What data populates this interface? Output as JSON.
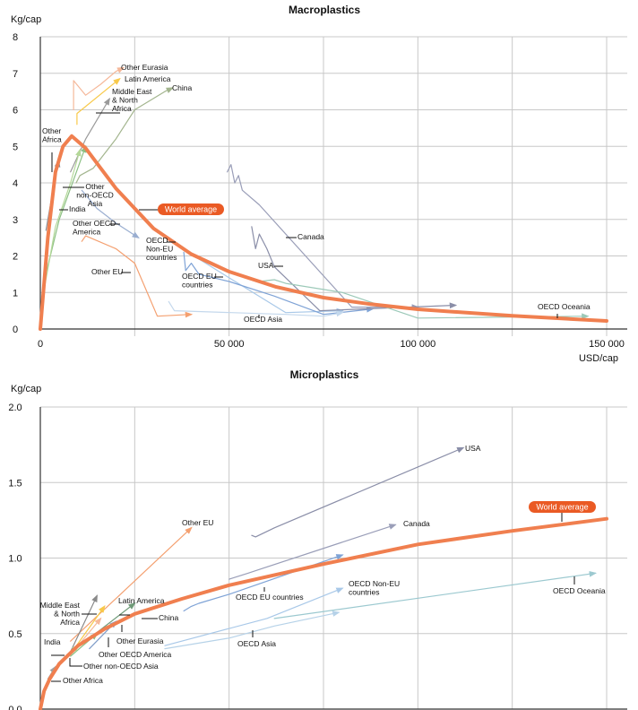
{
  "chart_data": [
    {
      "type": "line",
      "title": "Macroplastics",
      "ylabel": "Kg/cap",
      "xlabel": "USD/cap",
      "xlim": [
        0,
        150000
      ],
      "ylim": [
        0,
        8
      ],
      "x_ticks": [
        "0",
        "50 000",
        "100 000",
        "150 000"
      ],
      "y_ticks": [
        "0",
        "1",
        "2",
        "3",
        "4",
        "5",
        "6",
        "7",
        "8"
      ],
      "grid": true,
      "series": [
        {
          "name": "World average",
          "color": "#f07f4f",
          "points": [
            [
              0,
              0
            ],
            [
              2000,
              2.5
            ],
            [
              4000,
              4.3
            ],
            [
              6000,
              5.0
            ],
            [
              8300,
              5.28
            ],
            [
              12000,
              4.95
            ],
            [
              16000,
              4.4
            ],
            [
              20000,
              3.85
            ],
            [
              25000,
              3.3
            ],
            [
              30000,
              2.75
            ],
            [
              40000,
              2.05
            ],
            [
              50000,
              1.57
            ],
            [
              62500,
              1.15
            ],
            [
              75000,
              0.86
            ],
            [
              87500,
              0.68
            ],
            [
              100000,
              0.54
            ],
            [
              125000,
              0.36
            ],
            [
              150000,
              0.22
            ]
          ]
        },
        {
          "name": "Other Eurasia",
          "color": "#f5b89a",
          "points": [
            [
              8800,
              6.0
            ],
            [
              8800,
              6.8
            ],
            [
              12000,
              6.4
            ],
            [
              16000,
              6.7
            ],
            [
              20000,
              7.05
            ],
            [
              22000,
              7.15
            ]
          ]
        },
        {
          "name": "Latin America",
          "color": "#f8c94a",
          "points": [
            [
              9700,
              5.6
            ],
            [
              9700,
              5.9
            ],
            [
              21000,
              6.85
            ]
          ]
        },
        {
          "name": "Middle East & North Africa",
          "color": "#9a9a9a",
          "points": [
            [
              8000,
              4.3
            ],
            [
              12000,
              5.2
            ],
            [
              18300,
              6.3
            ]
          ]
        },
        {
          "name": "China",
          "color": "#a3b58e",
          "points": [
            [
              9500,
              4.0
            ],
            [
              10500,
              4.2
            ],
            [
              14000,
              4.4
            ],
            [
              20000,
              5.2
            ],
            [
              25000,
              6.0
            ],
            [
              33000,
              6.5
            ],
            [
              35000,
              6.6
            ]
          ]
        },
        {
          "name": "Other non-OECD Asia",
          "color": "#8cc084",
          "points": [
            [
              1700,
              1.6
            ],
            [
              5000,
              3.0
            ],
            [
              12000,
              5.0
            ]
          ]
        },
        {
          "name": "India",
          "color": "#b5d89a",
          "points": [
            [
              1200,
              1.2
            ],
            [
              4000,
              2.8
            ],
            [
              8000,
              4.0
            ],
            [
              10500,
              4.9
            ]
          ]
        },
        {
          "name": "Other Africa",
          "color": "#8a8f9a",
          "points": [
            [
              1500,
              2.7
            ],
            [
              2000,
              3.0
            ],
            [
              4200,
              4.3
            ],
            [
              4900,
              4.6
            ]
          ]
        },
        {
          "name": "Other OECD America",
          "color": "#9aaed0",
          "points": [
            [
              11000,
              3.8
            ],
            [
              15000,
              3.3
            ],
            [
              20000,
              2.9
            ],
            [
              26000,
              2.5
            ]
          ]
        },
        {
          "name": "Other EU",
          "color": "#f4a070",
          "points": [
            [
              11000,
              2.4
            ],
            [
              12000,
              2.55
            ],
            [
              20000,
              2.2
            ],
            [
              25000,
              1.8
            ],
            [
              31000,
              0.35
            ],
            [
              40000,
              0.4
            ]
          ]
        },
        {
          "name": "OECD Non-EU countries",
          "color": "#a8c8e8",
          "points": [
            [
              33000,
              2.55
            ],
            [
              36000,
              2.3
            ],
            [
              50000,
              1.4
            ],
            [
              65000,
              0.45
            ],
            [
              80000,
              0.5
            ]
          ]
        },
        {
          "name": "OECD EU countries",
          "color": "#7fa3d6",
          "points": [
            [
              38000,
              2.1
            ],
            [
              38500,
              1.6
            ],
            [
              40000,
              1.8
            ],
            [
              42000,
              1.5
            ],
            [
              50000,
              1.3
            ],
            [
              62000,
              0.9
            ],
            [
              75000,
              0.4
            ],
            [
              88000,
              0.55
            ]
          ]
        },
        {
          "name": "OECD Asia",
          "color": "#c4d8ec",
          "points": [
            [
              34000,
              0.75
            ],
            [
              35500,
              0.5
            ],
            [
              65000,
              0.4
            ],
            [
              75000,
              0.35
            ],
            [
              80000,
              0.45
            ]
          ]
        },
        {
          "name": "Canada",
          "color": "#9a9eb8",
          "points": [
            [
              49500,
              4.3
            ],
            [
              50500,
              4.5
            ],
            [
              51500,
              4.0
            ],
            [
              52500,
              4.2
            ],
            [
              53500,
              3.8
            ],
            [
              58000,
              3.4
            ],
            [
              82500,
              0.6
            ],
            [
              100000,
              0.6
            ]
          ]
        },
        {
          "name": "USA",
          "color": "#8a8ea8",
          "points": [
            [
              56000,
              2.8
            ],
            [
              57000,
              2.2
            ],
            [
              58000,
              2.6
            ],
            [
              60000,
              2.2
            ],
            [
              62000,
              1.7
            ],
            [
              74000,
              0.5
            ],
            [
              110000,
              0.65
            ]
          ]
        },
        {
          "name": "OECD Oceania",
          "color": "#9cc9b8",
          "points": [
            [
              58000,
              1.3
            ],
            [
              62000,
              1.35
            ],
            [
              65000,
              1.25
            ],
            [
              80000,
              1.0
            ],
            [
              100000,
              0.3
            ],
            [
              145000,
              0.35
            ]
          ]
        }
      ]
    },
    {
      "type": "line",
      "title": "Microplastics",
      "ylabel": "Kg/cap",
      "xlim": [
        0,
        150000
      ],
      "ylim": [
        0,
        2.0
      ],
      "y_ticks": [
        "0.0",
        "0.5",
        "1.0",
        "1.5",
        "2.0"
      ],
      "grid": true,
      "series": [
        {
          "name": "World average",
          "color": "#f07f4f",
          "points": [
            [
              0,
              0
            ],
            [
              1000,
              0.12
            ],
            [
              2500,
              0.2
            ],
            [
              5000,
              0.3
            ],
            [
              10000,
              0.42
            ],
            [
              17000,
              0.53
            ],
            [
              25000,
              0.63
            ],
            [
              37500,
              0.73
            ],
            [
              50000,
              0.82
            ],
            [
              75000,
              0.96
            ],
            [
              100000,
              1.09
            ],
            [
              125000,
              1.18
            ],
            [
              150000,
              1.26
            ]
          ]
        },
        {
          "name": "USA",
          "color": "#8a8ea8",
          "points": [
            [
              56000,
              1.15
            ],
            [
              57000,
              1.14
            ],
            [
              62000,
              1.2
            ],
            [
              112000,
              1.73
            ]
          ]
        },
        {
          "name": "Canada",
          "color": "#9a9eb8",
          "points": [
            [
              50000,
              0.86
            ],
            [
              55000,
              0.9
            ],
            [
              94000,
              1.22
            ]
          ]
        },
        {
          "name": "OECD EU countries",
          "color": "#7fa3d6",
          "points": [
            [
              38000,
              0.65
            ],
            [
              40000,
              0.68
            ],
            [
              42000,
              0.7
            ],
            [
              50000,
              0.76
            ],
            [
              80000,
              1.02
            ]
          ]
        },
        {
          "name": "OECD Non-EU countries",
          "color": "#a8c8e8",
          "points": [
            [
              33000,
              0.42
            ],
            [
              60000,
              0.6
            ],
            [
              80000,
              0.8
            ]
          ]
        },
        {
          "name": "OECD Asia",
          "color": "#b6d2e8",
          "points": [
            [
              33000,
              0.4
            ],
            [
              50000,
              0.47
            ],
            [
              62000,
              0.55
            ],
            [
              79000,
              0.64
            ]
          ]
        },
        {
          "name": "OECD Oceania",
          "color": "#9cc9d0",
          "points": [
            [
              62000,
              0.6
            ],
            [
              147000,
              0.9
            ]
          ]
        },
        {
          "name": "Other EU",
          "color": "#f4a070",
          "points": [
            [
              8000,
              0.45
            ],
            [
              40000,
              1.2
            ]
          ]
        },
        {
          "name": "Middle East & North Africa",
          "color": "#8a8a8a",
          "points": [
            [
              8000,
              0.38
            ],
            [
              15000,
              0.75
            ]
          ]
        },
        {
          "name": "Latin America",
          "color": "#f8c94a",
          "points": [
            [
              9000,
              0.4
            ],
            [
              17000,
              0.68
            ]
          ]
        },
        {
          "name": "Other Eurasia",
          "color": "#f5b89a",
          "points": [
            [
              10000,
              0.42
            ],
            [
              16000,
              0.6
            ]
          ]
        },
        {
          "name": "China",
          "color": "#6f9a78",
          "points": [
            [
              12000,
              0.45
            ],
            [
              25000,
              0.7
            ]
          ]
        },
        {
          "name": "Other OECD America",
          "color": "#7f9cc8",
          "points": [
            [
              13000,
              0.4
            ],
            [
              20000,
              0.58
            ]
          ]
        },
        {
          "name": "Other non-OECD Asia",
          "color": "#8cc084",
          "points": [
            [
              8000,
              0.35
            ],
            [
              15000,
              0.5
            ]
          ]
        },
        {
          "name": "India",
          "color": "#b5d89a",
          "points": [
            [
              3000,
              0.25
            ],
            [
              10000,
              0.42
            ]
          ]
        },
        {
          "name": "Other Africa",
          "color": "#a0a0a0",
          "points": [
            [
              2000,
              0.2
            ],
            [
              4000,
              0.28
            ]
          ]
        }
      ]
    }
  ],
  "labels": {
    "macro": [
      "Other Eurasia",
      "Latin America",
      "Middle East|& North|Africa",
      "China",
      "Other|Africa",
      "Other|non-OECD|Asia",
      "India",
      "Other OECD|America",
      "Other EU",
      "World average",
      "OECD|Non-EU|countries",
      "OECD EU|countries",
      "OECD Asia",
      "Canada",
      "USA",
      "OECD Oceania"
    ],
    "micro": [
      "Other EU",
      "USA",
      "Canada",
      "World average",
      "OECD EU countries",
      "OECD Non-EU|countries",
      "OECD Asia",
      "OECD Oceania",
      "Middle East|& North|Africa",
      "Latin America",
      "China",
      "Other Eurasia",
      "India",
      "Other OECD America",
      "Other non-OECD Asia",
      "Other Africa"
    ]
  }
}
